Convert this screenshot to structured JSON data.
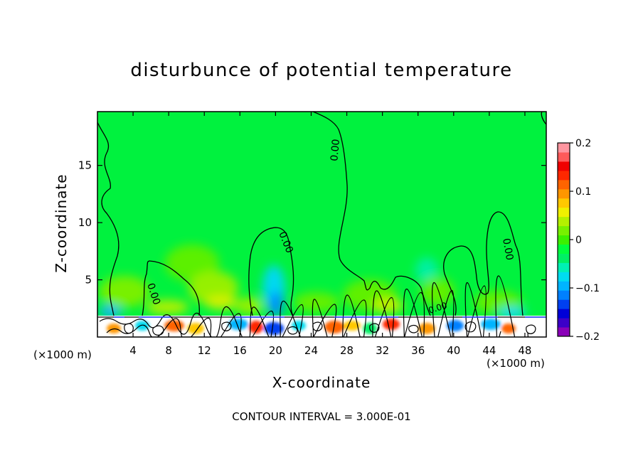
{
  "chart_data": {
    "type": "heatmap",
    "title": "disturbunce of potential temperature",
    "xlabel": "X-coordinate",
    "ylabel": "Z-coordinate",
    "x_unit": "(×1000 m)",
    "x_ticks": [
      4,
      8,
      12,
      16,
      20,
      24,
      28,
      32,
      36,
      40,
      44,
      48
    ],
    "y_ticks": [
      5,
      10,
      15
    ],
    "xlim": [
      0,
      50.4
    ],
    "ylim": [
      0,
      19.7
    ],
    "colorbar": {
      "range": [
        -0.2,
        0.2
      ],
      "tick_labels": [
        "0.2",
        "0.1",
        "0",
        "−0.1",
        "−0.2"
      ],
      "tick_values": [
        0.2,
        0.1,
        0,
        -0.1,
        -0.2
      ],
      "colors": [
        "#8a00b8",
        "#3c00c8",
        "#0000d8",
        "#0040f0",
        "#0080ff",
        "#00b4ff",
        "#00dcf0",
        "#00f0b4",
        "#00f064",
        "#00ff3c",
        "#3cf000",
        "#78f000",
        "#b4f000",
        "#f0f000",
        "#ffc800",
        "#ff9600",
        "#ff6400",
        "#ff2800",
        "#f00000",
        "#ff5a5a",
        "#ff96a0"
      ]
    },
    "contour_labels": [
      "0.00",
      "0.00",
      "0.00",
      "0.00",
      "0.00"
    ],
    "contour_interval": "CONTOUR INTERVAL = 3.000E-01"
  }
}
